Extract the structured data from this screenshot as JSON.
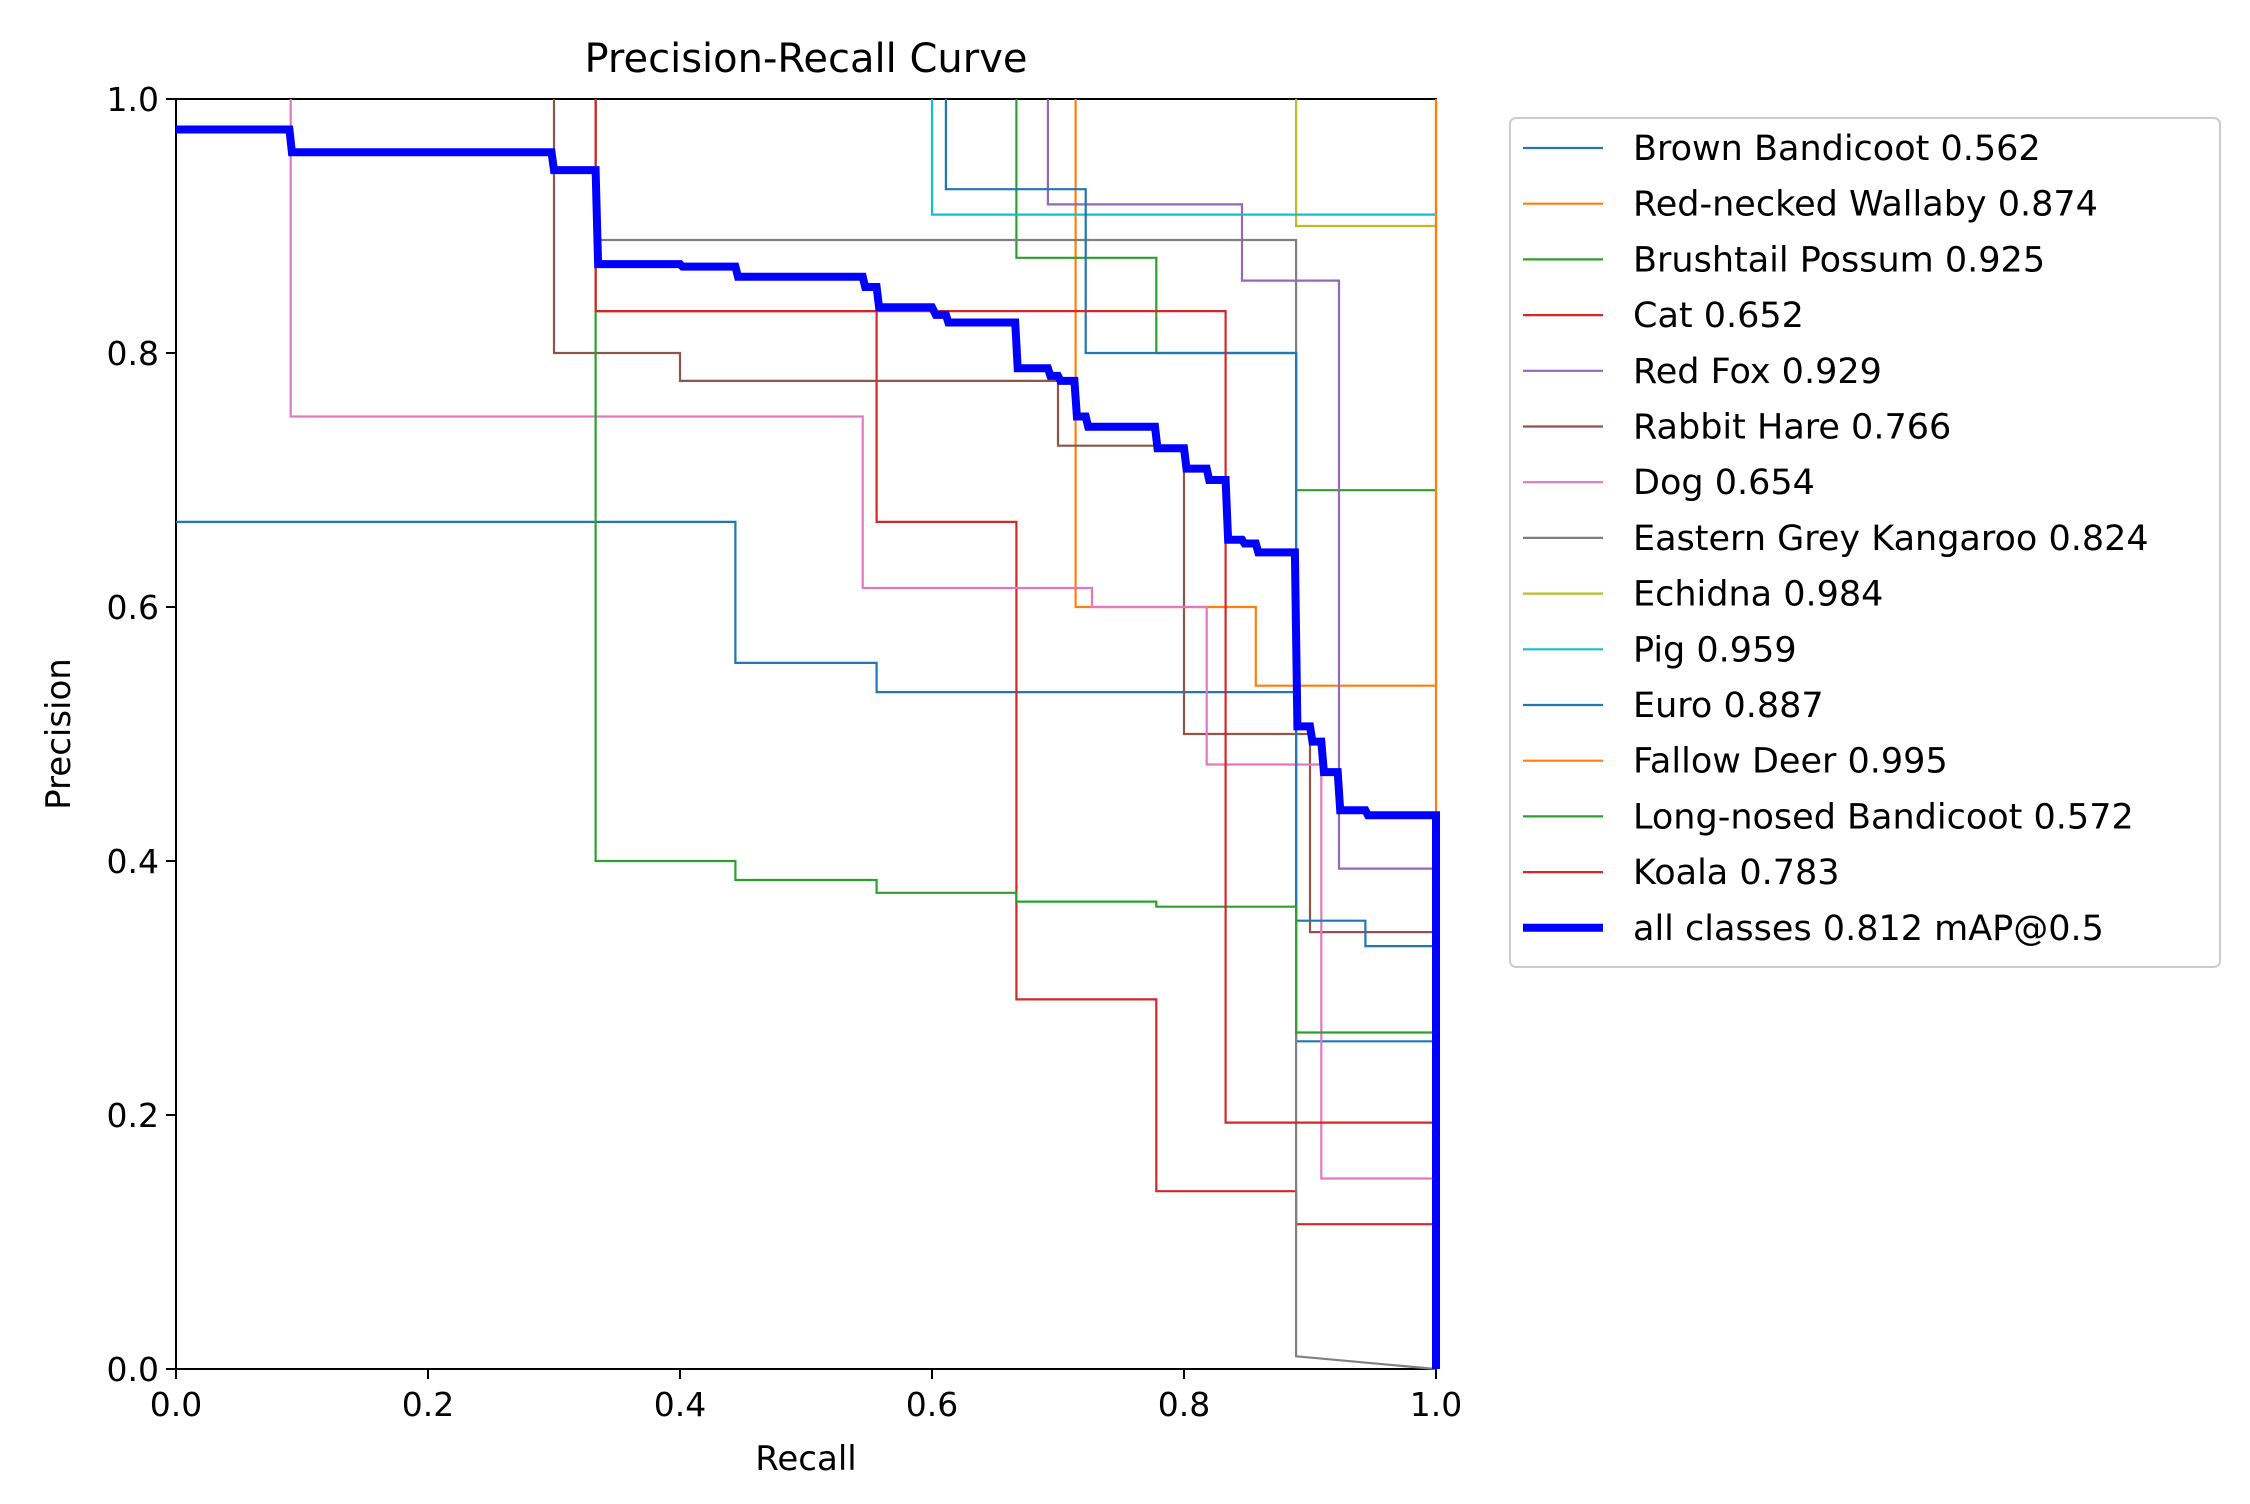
{
  "chart_data": {
    "type": "line",
    "title": "Precision-Recall Curve",
    "xlabel": "Recall",
    "ylabel": "Precision",
    "xlim": [
      0,
      1
    ],
    "ylim": [
      0,
      1
    ],
    "xticks": [
      "0.0",
      "0.2",
      "0.4",
      "0.6",
      "0.8",
      "1.0"
    ],
    "yticks": [
      "0.0",
      "0.2",
      "0.4",
      "0.6",
      "0.8",
      "1.0"
    ],
    "grid": false,
    "legend_position": "outside-right",
    "series": [
      {
        "name": "Brown Bandicoot 0.562",
        "color": "#1f77b4",
        "bold": false,
        "points": [
          [
            0,
            0.667
          ],
          [
            0.444,
            0.667
          ],
          [
            0.444,
            0.556
          ],
          [
            0.556,
            0.556
          ],
          [
            0.556,
            0.533
          ],
          [
            0.889,
            0.533
          ],
          [
            0.889,
            0.258
          ],
          [
            1,
            0.258
          ]
        ]
      },
      {
        "name": "Red-necked Wallaby 0.874",
        "color": "#ff7f0e",
        "bold": false,
        "points": [
          [
            0.714,
            1
          ],
          [
            0.714,
            0.6
          ],
          [
            0.857,
            0.6
          ],
          [
            0.857,
            0.538
          ],
          [
            1,
            0.538
          ],
          [
            1,
            1
          ]
        ]
      },
      {
        "name": "Brushtail Possum 0.925",
        "color": "#2ca02c",
        "bold": false,
        "points": [
          [
            0.667,
            1
          ],
          [
            0.667,
            0.875
          ],
          [
            0.778,
            0.875
          ],
          [
            0.778,
            0.8
          ],
          [
            0.889,
            0.8
          ],
          [
            0.889,
            0.692
          ],
          [
            1,
            0.692
          ]
        ]
      },
      {
        "name": "Cat 0.652",
        "color": "#d62728",
        "bold": false,
        "points": [
          [
            0.333,
            1
          ],
          [
            0.333,
            0.833
          ],
          [
            0.556,
            0.833
          ],
          [
            0.556,
            0.667
          ],
          [
            0.667,
            0.667
          ],
          [
            0.667,
            0.291
          ],
          [
            0.778,
            0.291
          ],
          [
            0.778,
            0.14
          ],
          [
            0.889,
            0.14
          ],
          [
            0.889,
            0.114
          ],
          [
            1,
            0.114
          ]
        ]
      },
      {
        "name": "Red Fox 0.929",
        "color": "#9467bd",
        "bold": false,
        "points": [
          [
            0.692,
            1
          ],
          [
            0.692,
            0.917
          ],
          [
            0.846,
            0.917
          ],
          [
            0.846,
            0.857
          ],
          [
            0.923,
            0.857
          ],
          [
            0.923,
            0.394
          ],
          [
            1,
            0.394
          ]
        ]
      },
      {
        "name": "Rabbit Hare 0.766",
        "color": "#8c564b",
        "bold": false,
        "points": [
          [
            0.3,
            1
          ],
          [
            0.3,
            0.8
          ],
          [
            0.4,
            0.8
          ],
          [
            0.4,
            0.778
          ],
          [
            0.7,
            0.778
          ],
          [
            0.7,
            0.727
          ],
          [
            0.8,
            0.727
          ],
          [
            0.8,
            0.5
          ],
          [
            0.9,
            0.5
          ],
          [
            0.9,
            0.344
          ],
          [
            1,
            0.344
          ]
        ]
      },
      {
        "name": "Dog 0.654",
        "color": "#e377c2",
        "bold": false,
        "points": [
          [
            0.091,
            1
          ],
          [
            0.091,
            0.75
          ],
          [
            0.545,
            0.75
          ],
          [
            0.545,
            0.615
          ],
          [
            0.727,
            0.615
          ],
          [
            0.727,
            0.6
          ],
          [
            0.818,
            0.6
          ],
          [
            0.818,
            0.476
          ],
          [
            0.909,
            0.476
          ],
          [
            0.909,
            0.15
          ],
          [
            1,
            0.15
          ]
        ]
      },
      {
        "name": "Eastern Grey Kangaroo 0.824",
        "color": "#7f7f7f",
        "bold": false,
        "points": [
          [
            0.333,
            1
          ],
          [
            0.333,
            0.889
          ],
          [
            0.889,
            0.889
          ],
          [
            0.889,
            0.01
          ],
          [
            1,
            0
          ]
        ]
      },
      {
        "name": "Echidna 0.984",
        "color": "#bcbd22",
        "bold": false,
        "points": [
          [
            0.889,
            1
          ],
          [
            0.889,
            0.9
          ],
          [
            1,
            0.9
          ]
        ]
      },
      {
        "name": "Pig 0.959",
        "color": "#17becf",
        "bold": false,
        "points": [
          [
            0.6,
            1
          ],
          [
            0.6,
            0.909
          ],
          [
            1,
            0.909
          ]
        ]
      },
      {
        "name": "Euro 0.887",
        "color": "#1f77b4",
        "bold": false,
        "points": [
          [
            0.611,
            1
          ],
          [
            0.611,
            0.929
          ],
          [
            0.722,
            0.929
          ],
          [
            0.722,
            0.8
          ],
          [
            0.889,
            0.8
          ],
          [
            0.889,
            0.353
          ],
          [
            0.944,
            0.353
          ],
          [
            0.944,
            0.333
          ],
          [
            1,
            0.333
          ]
        ]
      },
      {
        "name": "Fallow Deer 0.995",
        "color": "#ff7f0e",
        "bold": false,
        "points": [
          [
            1,
            1
          ],
          [
            1,
            0.02
          ]
        ]
      },
      {
        "name": "Long-nosed Bandicoot 0.572",
        "color": "#2ca02c",
        "bold": false,
        "points": [
          [
            0.333,
            1
          ],
          [
            0.333,
            0.4
          ],
          [
            0.444,
            0.4
          ],
          [
            0.444,
            0.385
          ],
          [
            0.556,
            0.385
          ],
          [
            0.556,
            0.375
          ],
          [
            0.667,
            0.375
          ],
          [
            0.667,
            0.368
          ],
          [
            0.778,
            0.368
          ],
          [
            0.778,
            0.364
          ],
          [
            0.889,
            0.364
          ],
          [
            0.889,
            0.265
          ],
          [
            1,
            0.265
          ]
        ]
      },
      {
        "name": "Koala 0.783",
        "color": "#d62728",
        "bold": false,
        "points": [
          [
            0.333,
            1
          ],
          [
            0.333,
            0.833
          ],
          [
            0.833,
            0.833
          ],
          [
            0.833,
            0.194
          ],
          [
            1,
            0.194
          ]
        ]
      },
      {
        "name": "all classes 0.812 mAP@0.5",
        "color": "#0000ff",
        "bold": true,
        "points": [
          [
            0,
            0.976
          ],
          [
            0.09,
            0.976
          ],
          [
            0.092,
            0.958
          ],
          [
            0.298,
            0.958
          ],
          [
            0.3,
            0.944
          ],
          [
            0.333,
            0.944
          ],
          [
            0.335,
            0.87
          ],
          [
            0.4,
            0.87
          ],
          [
            0.402,
            0.868
          ],
          [
            0.444,
            0.868
          ],
          [
            0.446,
            0.86
          ],
          [
            0.545,
            0.86
          ],
          [
            0.547,
            0.852
          ],
          [
            0.556,
            0.852
          ],
          [
            0.558,
            0.836
          ],
          [
            0.6,
            0.836
          ],
          [
            0.603,
            0.83
          ],
          [
            0.611,
            0.83
          ],
          [
            0.613,
            0.824
          ],
          [
            0.666,
            0.824
          ],
          [
            0.668,
            0.788
          ],
          [
            0.692,
            0.788
          ],
          [
            0.694,
            0.782
          ],
          [
            0.7,
            0.782
          ],
          [
            0.702,
            0.778
          ],
          [
            0.713,
            0.778
          ],
          [
            0.715,
            0.75
          ],
          [
            0.722,
            0.75
          ],
          [
            0.724,
            0.742
          ],
          [
            0.777,
            0.742
          ],
          [
            0.779,
            0.725
          ],
          [
            0.8,
            0.725
          ],
          [
            0.802,
            0.709
          ],
          [
            0.818,
            0.709
          ],
          [
            0.82,
            0.7
          ],
          [
            0.833,
            0.7
          ],
          [
            0.835,
            0.653
          ],
          [
            0.846,
            0.653
          ],
          [
            0.848,
            0.65
          ],
          [
            0.857,
            0.65
          ],
          [
            0.859,
            0.643
          ],
          [
            0.888,
            0.643
          ],
          [
            0.89,
            0.506
          ],
          [
            0.9,
            0.506
          ],
          [
            0.902,
            0.494
          ],
          [
            0.909,
            0.494
          ],
          [
            0.911,
            0.47
          ],
          [
            0.922,
            0.47
          ],
          [
            0.924,
            0.44
          ],
          [
            0.944,
            0.44
          ],
          [
            0.946,
            0.436
          ],
          [
            1,
            0.436
          ],
          [
            1,
            0
          ]
        ]
      }
    ]
  }
}
